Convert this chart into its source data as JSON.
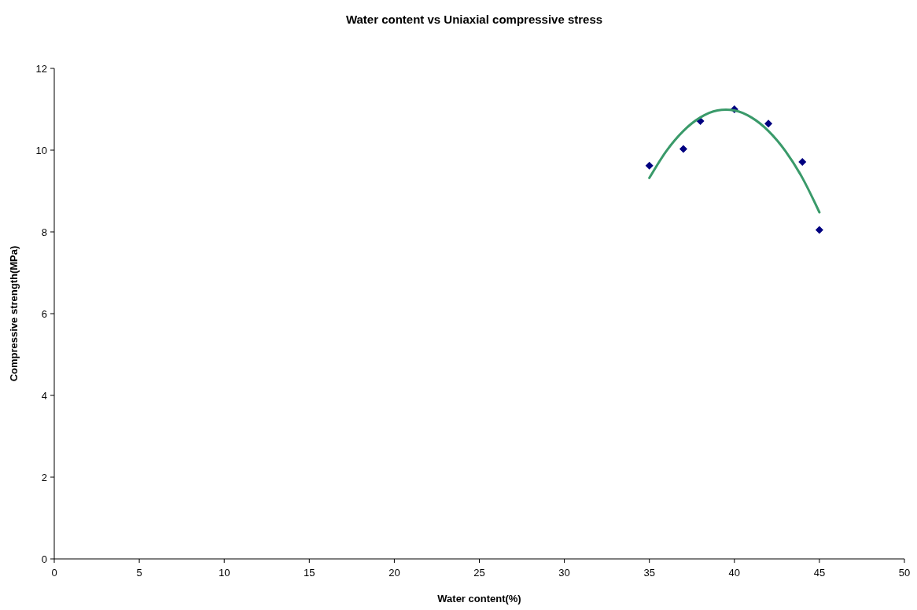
{
  "chart_data": {
    "type": "scatter",
    "title": "Water content vs Uniaxial compressive stress",
    "xlabel": "Water content(%)",
    "ylabel": "Compressive strength(MPa)",
    "xlim": [
      0,
      50
    ],
    "xticks": [
      0,
      5,
      10,
      15,
      20,
      25,
      30,
      35,
      40,
      45,
      50
    ],
    "ylim": [
      0,
      12
    ],
    "yticks": [
      0,
      2,
      4,
      6,
      8,
      10,
      12
    ],
    "grid": false,
    "series": [
      {
        "color": "#000080",
        "marker": "diamond",
        "x": [
          35,
          37,
          38,
          40,
          42,
          44,
          45
        ],
        "values": [
          9.62,
          10.03,
          10.71,
          11.0,
          10.65,
          9.71,
          8.05
        ]
      },
      {
        "type": "line",
        "color": "#3a9a6a",
        "marker": "none",
        "line_style": "solid",
        "x": [
          35,
          36,
          37,
          38,
          39,
          39.5,
          40,
          41,
          42,
          43,
          44,
          45
        ],
        "values": [
          9.32,
          9.98,
          10.47,
          10.8,
          10.97,
          10.99,
          10.97,
          10.8,
          10.47,
          9.98,
          9.32,
          8.48
        ]
      }
    ]
  }
}
